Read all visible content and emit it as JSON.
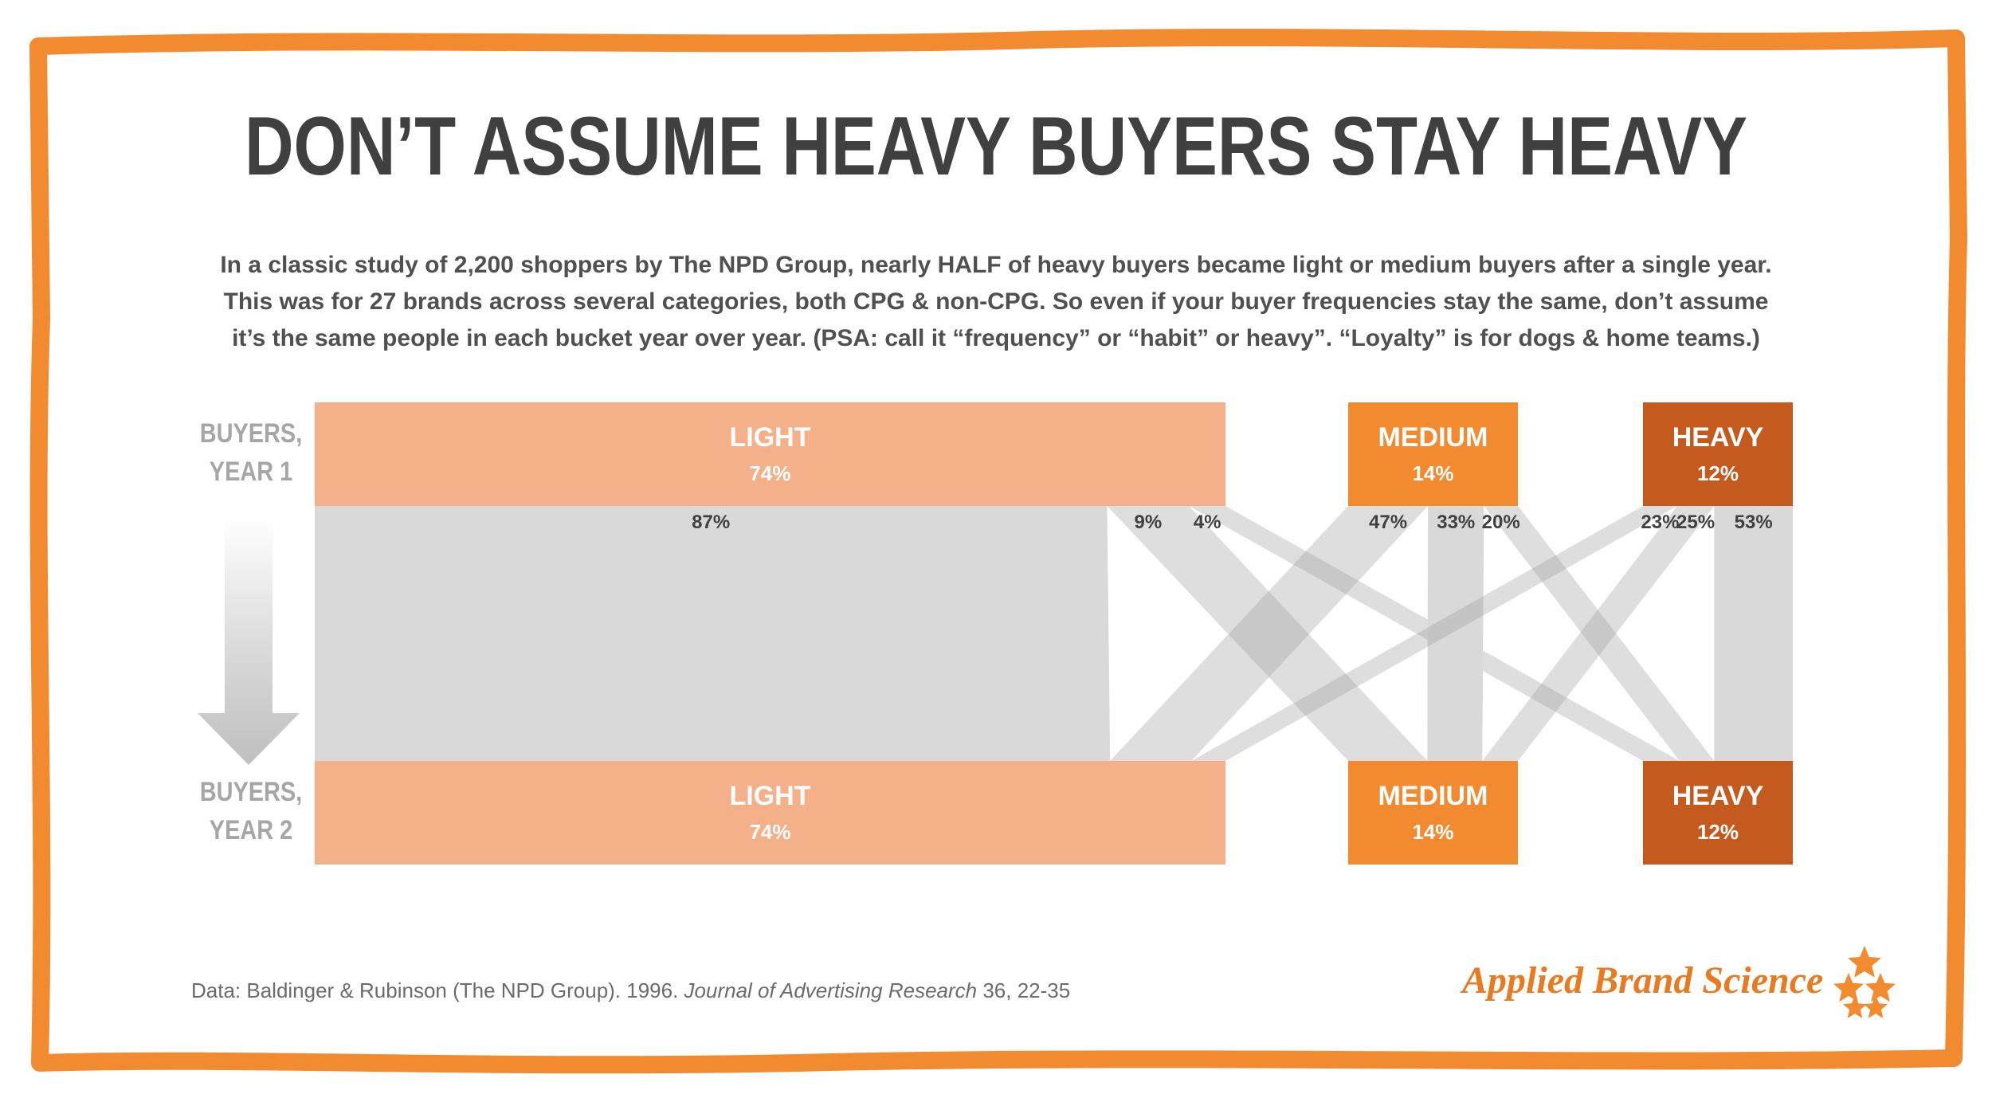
{
  "title": "DON’T ASSUME HEAVY BUYERS STAY HEAVY",
  "subtitle_lines": [
    "In a classic study of 2,200 shoppers by The NPD Group, nearly HALF of heavy buyers became light or medium buyers after a single year.",
    "This was for 27 brands across several categories, both CPG & non-CPG. So even if your buyer frequencies stay the same, don’t assume",
    "it’s the same people in each bucket year over year. (PSA: call it “frequency” or “habit” or heavy”. “Loyalty” is for dogs & home teams.)"
  ],
  "labels": {
    "year1_line1": "BUYERS,",
    "year1_line2": "YEAR 1",
    "year2_line1": "BUYERS,",
    "year2_line2": "YEAR 2"
  },
  "source": {
    "prefix": "Data: Baldinger & Rubinson (The NPD Group). 1996. ",
    "journal": "Journal of Advertising Research",
    "suffix": " 36, 22-35"
  },
  "brand": "Applied Brand Science",
  "colors": {
    "frame": "#f28a30",
    "light": "#f4b088",
    "medium": "#f28a30",
    "heavy": "#c55a1e",
    "flow": "#d9d9d9",
    "text_dark": "#404040",
    "arrow": "#bfbfbf"
  },
  "chart_data": {
    "type": "flow",
    "year1": [
      {
        "name": "LIGHT",
        "label": "74%",
        "share": 74
      },
      {
        "name": "MEDIUM",
        "label": "14%",
        "share": 14
      },
      {
        "name": "HEAVY",
        "label": "12%",
        "share": 12
      }
    ],
    "year2": [
      {
        "name": "LIGHT",
        "label": "74%",
        "share": 74
      },
      {
        "name": "MEDIUM",
        "label": "14%",
        "share": 14
      },
      {
        "name": "HEAVY",
        "label": "12%",
        "share": 12
      }
    ],
    "transitions": [
      {
        "from": "LIGHT",
        "to": "LIGHT",
        "label": "87%",
        "value": 87
      },
      {
        "from": "LIGHT",
        "to": "MEDIUM",
        "label": "9%",
        "value": 9
      },
      {
        "from": "LIGHT",
        "to": "HEAVY",
        "label": "4%",
        "value": 4
      },
      {
        "from": "MEDIUM",
        "to": "LIGHT",
        "label": "47%",
        "value": 47
      },
      {
        "from": "MEDIUM",
        "to": "MEDIUM",
        "label": "33%",
        "value": 33
      },
      {
        "from": "MEDIUM",
        "to": "HEAVY",
        "label": "20%",
        "value": 20
      },
      {
        "from": "HEAVY",
        "to": "LIGHT",
        "label": "23%",
        "value": 23
      },
      {
        "from": "HEAVY",
        "to": "MEDIUM",
        "label": "25%",
        "value": 25
      },
      {
        "from": "HEAVY",
        "to": "HEAVY",
        "label": "53%",
        "value": 53
      }
    ]
  }
}
